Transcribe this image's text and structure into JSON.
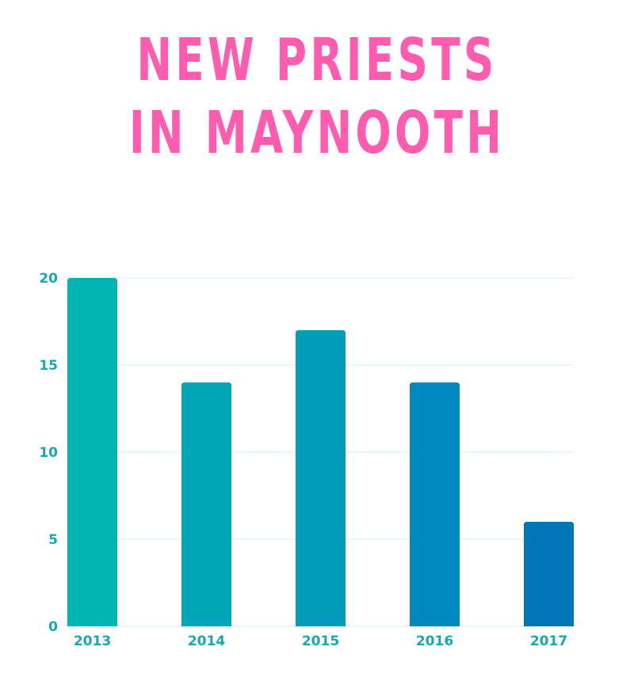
{
  "chart_data": {
    "type": "bar",
    "title": [
      "NEW PRIESTS",
      "IN MAYNOOTH"
    ],
    "xlabel": "",
    "ylabel": "",
    "categories": [
      "2013",
      "2014",
      "2015",
      "2016",
      "2017"
    ],
    "values": [
      20,
      14,
      17,
      14,
      6
    ],
    "ylim": [
      0,
      20
    ],
    "yticks": [
      "0",
      "5",
      "10",
      "15",
      "20"
    ],
    "grid": true,
    "legend": "none",
    "colors": {
      "title": "#ff5cb0",
      "ticks": "#16a9b4",
      "grid": "#cfeef0",
      "bars": [
        "#00b5b2",
        "#00a7b6",
        "#009cba",
        "#0088c0",
        "#0076b8"
      ]
    }
  }
}
